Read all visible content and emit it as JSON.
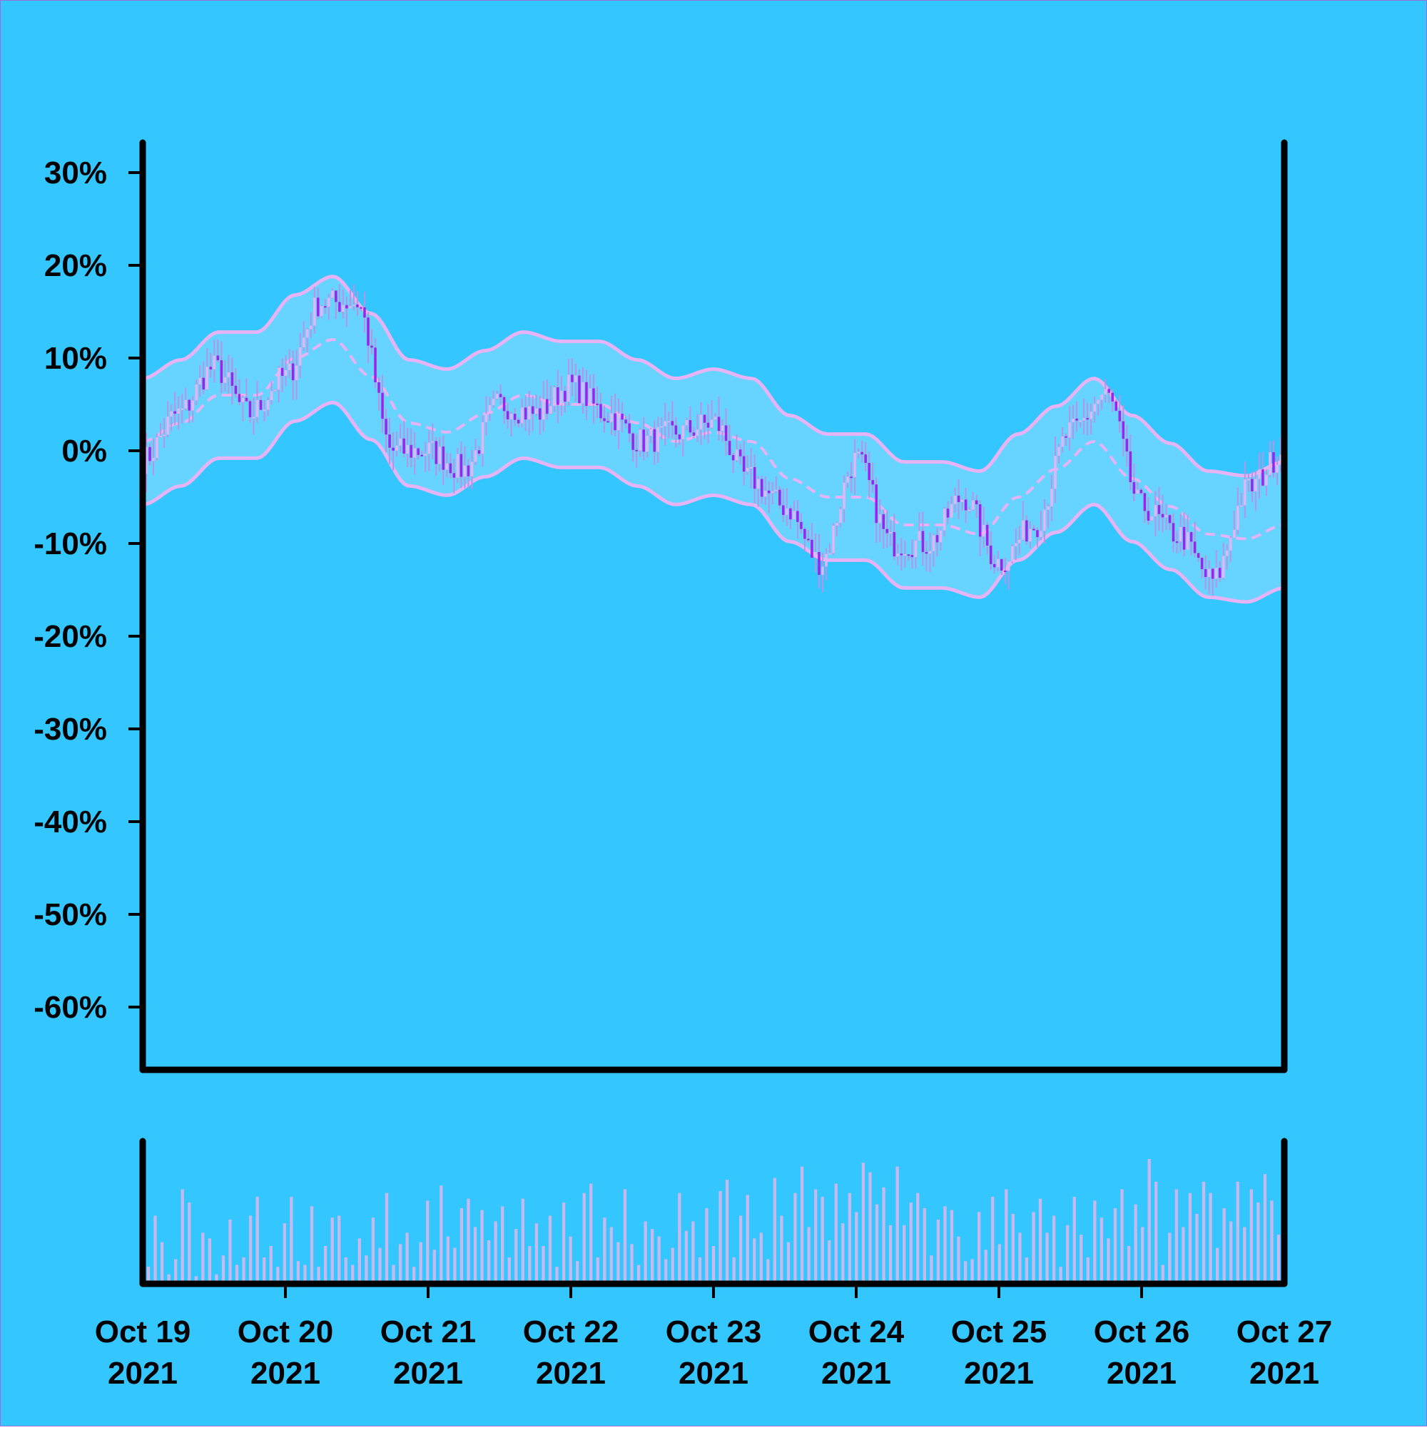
{
  "colors": {
    "background": "#33C6FF",
    "border": "#9B6BD6",
    "band_fill": "#66D4FF",
    "band_line": "#E6B3F5",
    "candle_up": "#E6B3F5",
    "candle_down": "#A020F0",
    "wick": "#B794E6",
    "volume_bar": "#C7B8EE",
    "axis": "#000000"
  },
  "chart_data": {
    "type": "candlestick",
    "title": "",
    "xlabel": "",
    "ylabel": "",
    "y_axis": {
      "ticks": [
        30,
        20,
        10,
        0,
        -10,
        -20,
        -30,
        -40,
        -50,
        -60
      ],
      "tick_labels": [
        "30%",
        "20%",
        "10%",
        "0%",
        "-10%",
        "-20%",
        "-30%",
        "-40%",
        "-50%",
        "-60%"
      ],
      "ylim": [
        -66,
        33
      ],
      "unit": "%"
    },
    "x_axis": {
      "ticks": [
        "2021-10-19",
        "2021-10-20",
        "2021-10-21",
        "2021-10-22",
        "2021-10-23",
        "2021-10-24",
        "2021-10-25",
        "2021-10-26",
        "2021-10-27"
      ],
      "tick_labels": [
        [
          "Oct 19",
          "2021"
        ],
        [
          "Oct 20",
          "2021"
        ],
        [
          "Oct 21",
          "2021"
        ],
        [
          "Oct 22",
          "2021"
        ],
        [
          "Oct 23",
          "2021"
        ],
        [
          "Oct 24",
          "2021"
        ],
        [
          "Oct 25",
          "2021"
        ],
        [
          "Oct 26",
          "2021"
        ],
        [
          "Oct 27",
          "2021"
        ]
      ],
      "xlim": [
        "2021-10-19 00:00",
        "2021-10-27 00:00"
      ]
    },
    "close_series": {
      "name": "",
      "x": [
        "2021-10-19 00:00",
        "2021-10-19 06:00",
        "2021-10-19 12:00",
        "2021-10-19 18:00",
        "2021-10-20 00:00",
        "2021-10-20 06:00",
        "2021-10-20 12:00",
        "2021-10-20 18:00",
        "2021-10-21 00:00",
        "2021-10-21 06:00",
        "2021-10-21 12:00",
        "2021-10-21 18:00",
        "2021-10-22 00:00",
        "2021-10-22 06:00",
        "2021-10-22 12:00",
        "2021-10-22 18:00",
        "2021-10-23 00:00",
        "2021-10-23 06:00",
        "2021-10-23 12:00",
        "2021-10-23 18:00",
        "2021-10-24 00:00",
        "2021-10-24 06:00",
        "2021-10-24 12:00",
        "2021-10-24 18:00",
        "2021-10-25 00:00",
        "2021-10-25 06:00",
        "2021-10-25 12:00",
        "2021-10-25 18:00",
        "2021-10-26 00:00",
        "2021-10-26 06:00",
        "2021-10-26 12:00",
        "2021-10-26 18:00",
        "2021-10-27 00:00"
      ],
      "values": [
        -1,
        4,
        9,
        4,
        8,
        16,
        16,
        0,
        0,
        -2,
        5,
        4,
        7,
        4,
        1,
        2,
        3,
        -3,
        -6,
        -12,
        -1,
        -10,
        -10,
        -5,
        -12,
        -8,
        2,
        6,
        -6,
        -9,
        -14,
        -4,
        0
      ]
    },
    "middle_band": [
      1,
      3,
      6,
      6,
      10,
      12,
      8,
      3,
      2,
      4,
      6,
      5,
      5,
      3,
      1,
      2,
      1,
      -3,
      -5,
      -5,
      -8,
      -8,
      -9,
      -5,
      -2,
      1,
      -3,
      -6,
      -9,
      -9.5,
      -8
    ],
    "volume": {
      "values": [
        18,
        72,
        44,
        10,
        26,
        100,
        86,
        8,
        54,
        48,
        10,
        30,
        68,
        20,
        28,
        72,
        92,
        28,
        40,
        18,
        64,
        92,
        24,
        20,
        82,
        18,
        40,
        70,
        72,
        28,
        20,
        48,
        30,
        70,
        38,
        96,
        20,
        42,
        54,
        18,
        44,
        88,
        36,
        104,
        50,
        38,
        80,
        90,
        60,
        78,
        46,
        66,
        82,
        28,
        58,
        90,
        40,
        64,
        40,
        72,
        18,
        86,
        50,
        24,
        96,
        106,
        28,
        70,
        60,
        44,
        100,
        42,
        20,
        66,
        58,
        50,
        26,
        38,
        96,
        56,
        66,
        28,
        80,
        40,
        98,
        110,
        28,
        72,
        94,
        48,
        54,
        26,
        112,
        72,
        44,
        96,
        124,
        60,
        100,
        92,
        46,
        106,
        64,
        96,
        76,
        128,
        118,
        84,
        102,
        62,
        124,
        62,
        86,
        96,
        80,
        30,
        68,
        82,
        78,
        50,
        24,
        26,
        76,
        36,
        92,
        42,
        100,
        74,
        54,
        28,
        76,
        90,
        54,
        72,
        18,
        62,
        92,
        52,
        28,
        88,
        70,
        48,
        80,
        100,
        40,
        84,
        60,
        132,
        108,
        20,
        54,
        100,
        60,
        96,
        74,
        108,
        96,
        38,
        80,
        66,
        108,
        60,
        100,
        86,
        116,
        88,
        52
      ]
    },
    "grid": false,
    "legend": "none"
  }
}
